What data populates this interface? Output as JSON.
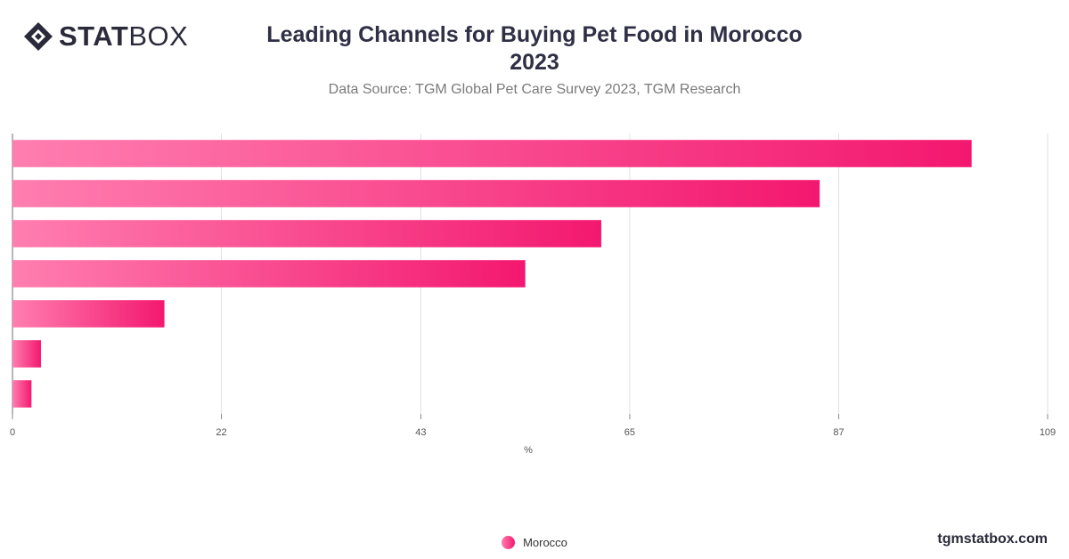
{
  "brand": {
    "logo_bold": "STAT",
    "logo_light": "BOX",
    "site": "tgmstatbox.com"
  },
  "header": {
    "title": "Leading Channels for Buying Pet Food in Morocco",
    "year": "2023",
    "subtitle": "Data Source: TGM Global Pet Care Survey 2023, TGM Research"
  },
  "chart_data": {
    "type": "bar",
    "orientation": "horizontal",
    "categories": [
      "",
      "",
      "",
      "",
      "",
      "",
      ""
    ],
    "series": [
      {
        "name": "Morocco",
        "values": [
          101,
          85,
          62,
          54,
          16,
          3,
          2
        ]
      }
    ],
    "xlabel": "%",
    "xlim": [
      0,
      109
    ],
    "xticks": [
      "0",
      "22",
      "43",
      "65",
      "87",
      "109"
    ],
    "grid": true,
    "legend_position": "bottom-center",
    "colors": {
      "bar_start": "#ff7eb0",
      "bar_end": "#f3186f",
      "grid": "#e2e2e2",
      "axis": "#888888"
    }
  }
}
